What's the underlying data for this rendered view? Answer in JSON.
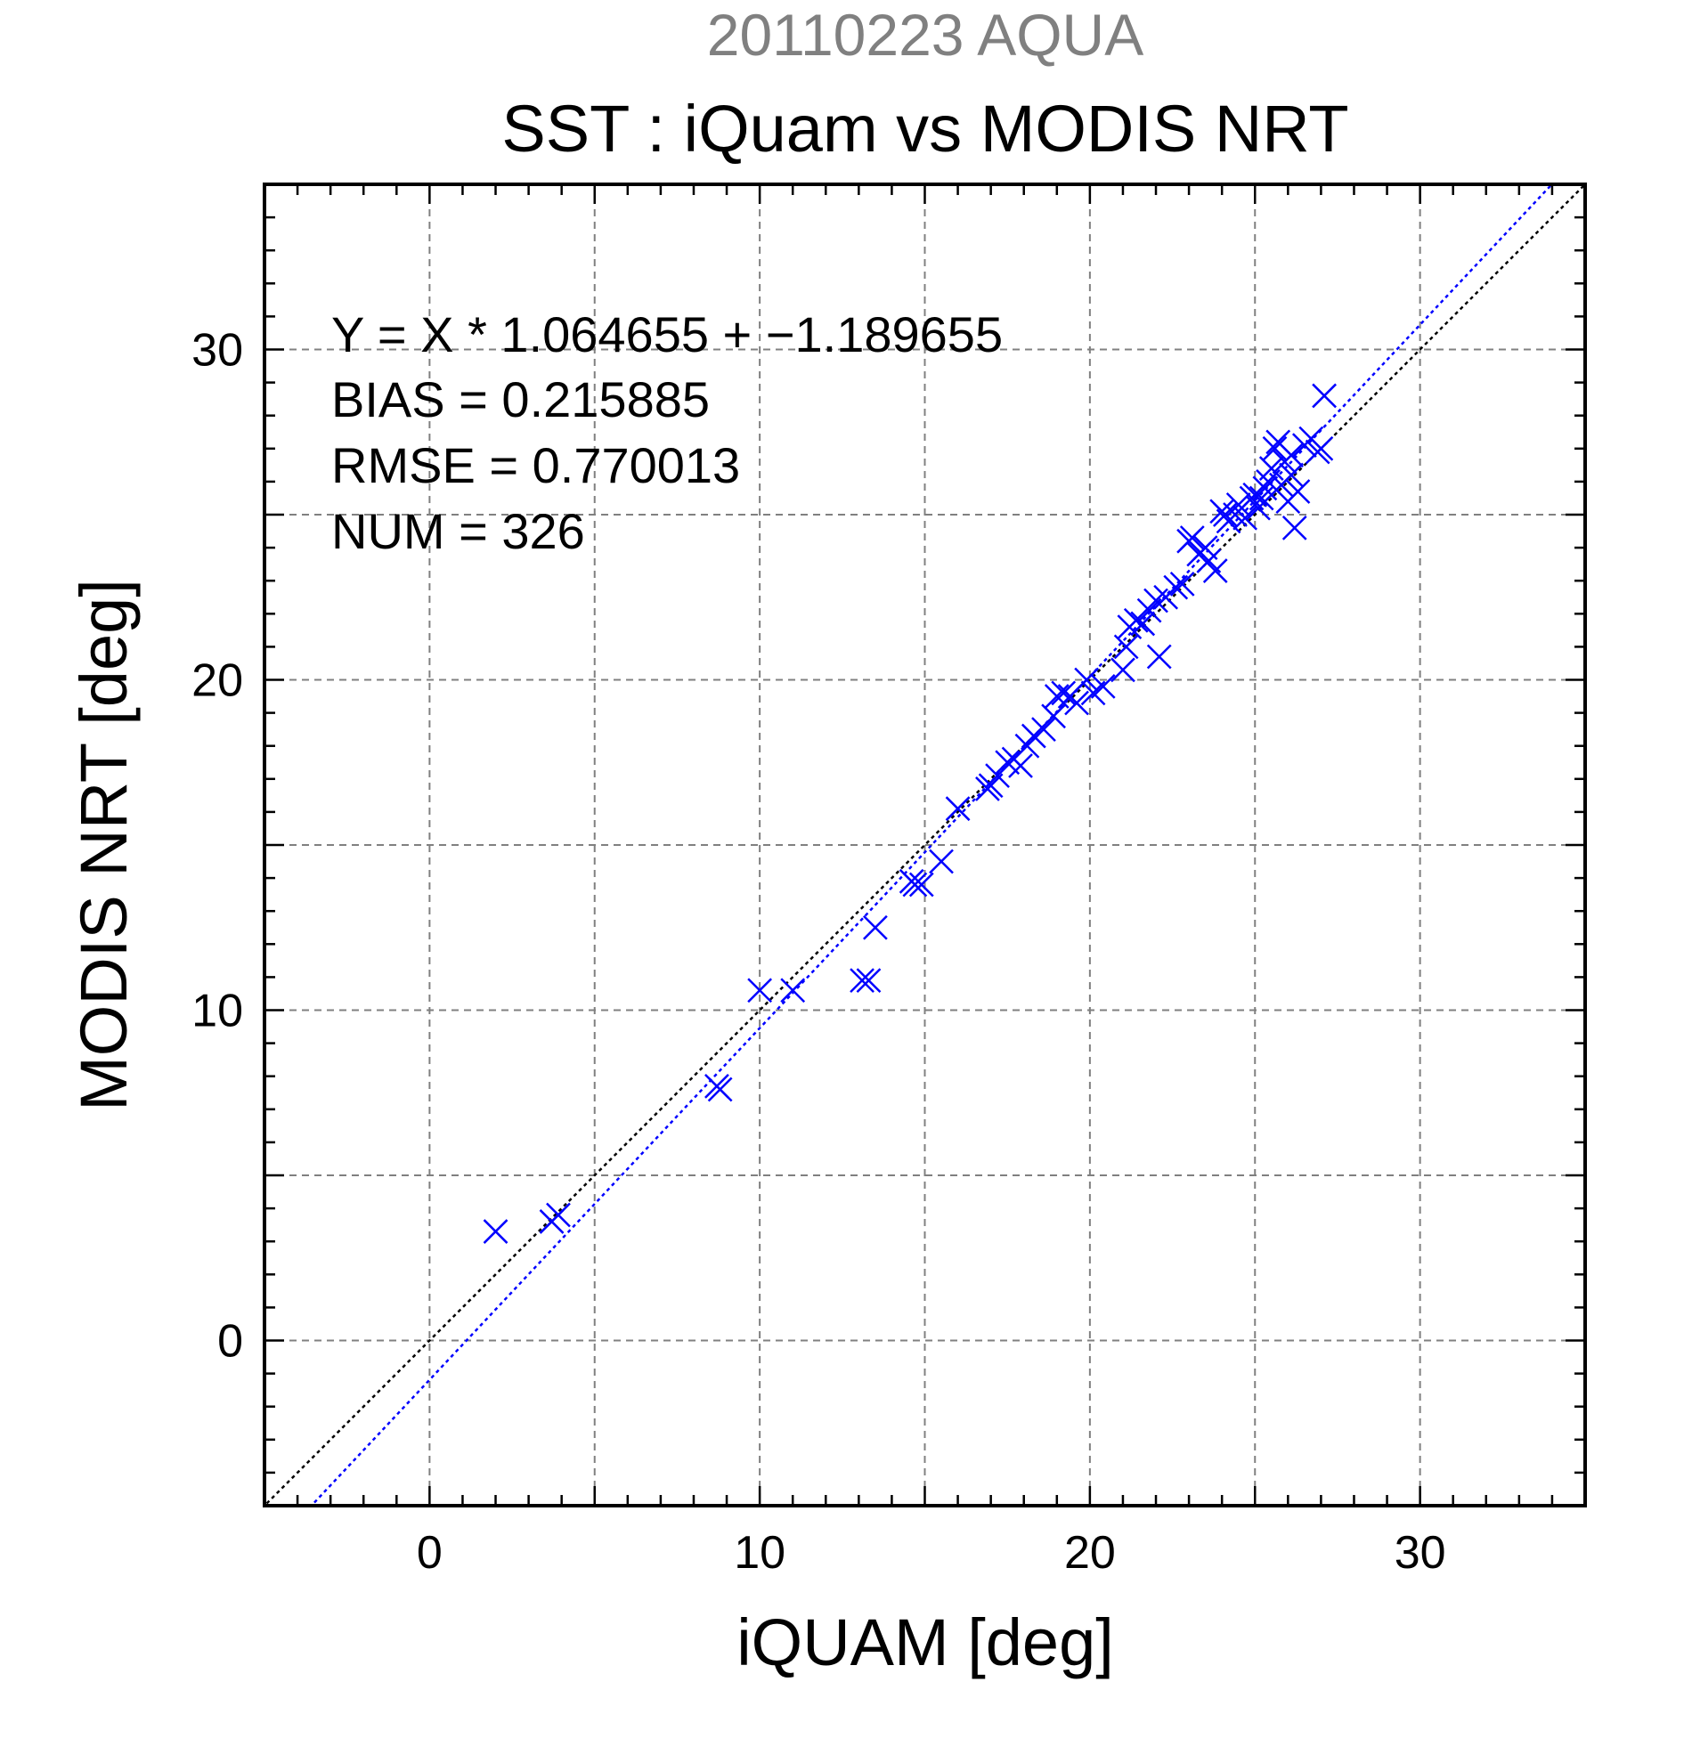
{
  "chart_data": {
    "type": "scatter",
    "title": "20110223 AQUA",
    "subtitle": "SST : iQuam vs MODIS NRT",
    "xlabel": "iQUAM [deg]",
    "ylabel": "MODIS NRT [deg]",
    "xlim": [
      -5,
      35
    ],
    "ylim": [
      -5,
      35
    ],
    "x_ticks": [
      0,
      10,
      20,
      30
    ],
    "y_ticks": [
      0,
      10,
      20,
      30
    ],
    "x_tick_labels": [
      "0",
      "10",
      "20",
      "30"
    ],
    "y_tick_labels": [
      "0",
      "10",
      "20",
      "30"
    ],
    "grid": true,
    "marker_color": "#0000ff",
    "title_color": "#808080",
    "stats": [
      "Y = X * 1.064655 + −1.189655",
      "BIAS = 0.215885",
      "RMSE = 0.770013",
      "NUM = 326"
    ],
    "fit_line": {
      "slope": 1.064655,
      "intercept": -1.189655,
      "color": "#0000ff",
      "style": "dotted"
    },
    "identity_line": {
      "slope": 1,
      "intercept": 0,
      "color": "#000000",
      "style": "dotted"
    },
    "points": {
      "x": [
        2.0,
        3.7,
        3.9,
        8.7,
        8.8,
        10.0,
        11.0,
        13.1,
        13.3,
        13.5,
        14.6,
        14.7,
        14.9,
        15.5,
        16.0,
        16.9,
        17.0,
        17.2,
        17.5,
        17.7,
        17.9,
        18.1,
        18.3,
        18.6,
        18.9,
        19.0,
        19.2,
        19.4,
        19.6,
        19.9,
        20.1,
        20.4,
        21.0,
        21.1,
        21.2,
        21.4,
        21.6,
        21.8,
        22.0,
        22.1,
        22.3,
        22.6,
        22.8,
        23.0,
        23.1,
        23.3,
        23.5,
        23.6,
        23.8,
        24.0,
        24.2,
        24.4,
        24.5,
        24.7,
        24.9,
        25.0,
        25.1,
        25.3,
        25.4,
        25.5,
        25.6,
        25.7,
        25.8,
        25.9,
        26.0,
        26.1,
        26.2,
        26.3,
        26.5,
        26.7,
        26.9,
        27.0,
        24.1,
        26.1,
        25.2
      ],
      "y": [
        3.3,
        3.6,
        3.8,
        7.7,
        7.6,
        10.6,
        10.6,
        10.9,
        10.9,
        12.5,
        13.9,
        13.8,
        13.8,
        14.5,
        16.1,
        16.7,
        16.8,
        17.1,
        17.5,
        17.6,
        17.4,
        18.0,
        18.3,
        18.5,
        18.9,
        19.5,
        19.6,
        19.5,
        19.3,
        20.0,
        19.6,
        19.8,
        20.3,
        21.0,
        21.6,
        21.8,
        21.7,
        22.1,
        22.4,
        20.7,
        22.5,
        22.8,
        22.9,
        24.2,
        24.3,
        23.8,
        24.0,
        23.6,
        23.3,
        25.1,
        24.8,
        25.0,
        25.3,
        24.9,
        25.5,
        25.6,
        25.2,
        25.8,
        26.0,
        26.4,
        27.0,
        27.2,
        25.9,
        26.6,
        25.4,
        26.8,
        24.6,
        25.7,
        27.1,
        27.3,
        26.9,
        27.0,
        25.0,
        26.2,
        25.5
      ]
    },
    "outlier_point": {
      "x": 27.1,
      "y": 28.6
    }
  }
}
